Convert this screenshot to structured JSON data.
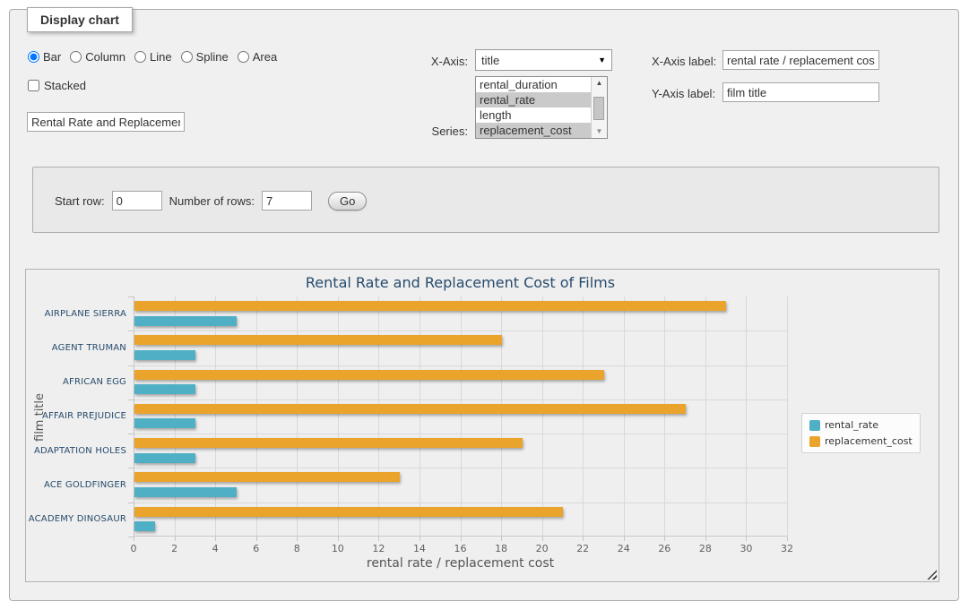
{
  "fieldset": {
    "legend": "Display chart"
  },
  "controls": {
    "chart_types": [
      {
        "label": "Bar",
        "selected": true
      },
      {
        "label": "Column",
        "selected": false
      },
      {
        "label": "Line",
        "selected": false
      },
      {
        "label": "Spline",
        "selected": false
      },
      {
        "label": "Area",
        "selected": false
      }
    ],
    "stacked_label": "Stacked",
    "stacked_checked": false,
    "chart_title_value": "Rental Rate and Replacement Cost of Films",
    "x_axis_label_text": "X-Axis:",
    "x_axis_selected": "title",
    "series_label_text": "Series:",
    "series_options": [
      {
        "label": "rental_duration",
        "selected": false
      },
      {
        "label": "rental_rate",
        "selected": true
      },
      {
        "label": "length",
        "selected": false
      },
      {
        "label": "replacement_cost",
        "selected": true
      }
    ],
    "x_axis_title_label": "X-Axis label:",
    "x_axis_title_value": "rental rate / replacement cost",
    "y_axis_title_label": "Y-Axis label:",
    "y_axis_title_value": "film title"
  },
  "row_panel": {
    "start_row_label": "Start row:",
    "start_row_value": "0",
    "number_of_rows_label": "Number of rows:",
    "number_of_rows_value": "7",
    "go_label": "Go"
  },
  "chart_data": {
    "type": "bar",
    "title": "Rental Rate and Replacement Cost of Films",
    "categories": [
      "AIRPLANE SIERRA",
      "AGENT TRUMAN",
      "AFRICAN EGG",
      "AFFAIR PREJUDICE",
      "ADAPTATION HOLES",
      "ACE GOLDFINGER",
      "ACADEMY DINOSAUR"
    ],
    "series": [
      {
        "name": "rental_rate",
        "color": "#4FB0C5",
        "values": [
          4.99,
          2.99,
          2.99,
          2.99,
          2.99,
          4.99,
          0.99
        ]
      },
      {
        "name": "replacement_cost",
        "color": "#EAA42C",
        "values": [
          28.99,
          17.99,
          22.99,
          26.99,
          18.99,
          12.99,
          20.99
        ]
      }
    ],
    "xlabel": "rental rate / replacement cost",
    "ylabel": "film title",
    "xlim": [
      0,
      32
    ],
    "tick_step": 2,
    "grid": true,
    "legend_position": "right",
    "colors": {
      "title": "#274B6D",
      "category_label": "#274B6D",
      "axis_text": "#606060",
      "axis_title": "#555555",
      "gridline": "#D9D9D9"
    }
  }
}
